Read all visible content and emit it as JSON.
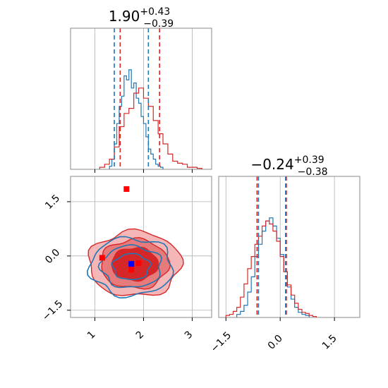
{
  "chart_data": [
    {
      "type": "histogram",
      "panel": "top-left",
      "title": {
        "value": "1.90",
        "plus": "+0.43",
        "minus": "−0.39"
      },
      "xlim": [
        0.5,
        3.4
      ],
      "grid": true,
      "series": [
        {
          "color": "#1f77b4",
          "bin_edges": [
            1.3,
            1.35,
            1.4,
            1.45,
            1.5,
            1.55,
            1.6,
            1.65,
            1.7,
            1.75,
            1.8,
            1.85,
            1.9,
            1.95,
            2.0,
            2.05,
            2.1,
            2.15,
            2.2,
            2.25,
            2.3,
            2.35,
            2.4
          ],
          "counts": [
            0.03,
            0.1,
            0.25,
            0.45,
            0.62,
            0.72,
            0.92,
            0.88,
            0.98,
            0.8,
            0.85,
            0.7,
            0.65,
            0.52,
            0.45,
            0.32,
            0.2,
            0.15,
            0.1,
            0.05,
            0.03,
            0.02
          ]
        },
        {
          "color": "#d62728",
          "bin_edges": [
            1.1,
            1.2,
            1.3,
            1.4,
            1.5,
            1.6,
            1.7,
            1.8,
            1.9,
            2.0,
            2.1,
            2.2,
            2.3,
            2.4,
            2.5,
            2.6,
            2.7,
            2.8,
            2.9,
            3.0,
            3.1,
            3.2
          ],
          "counts": [
            0.02,
            0.05,
            0.1,
            0.22,
            0.42,
            0.55,
            0.6,
            0.75,
            0.8,
            0.7,
            0.62,
            0.48,
            0.35,
            0.25,
            0.15,
            0.08,
            0.06,
            0.05,
            0.02,
            0.02,
            0.01
          ]
        }
      ],
      "quantile_lines": [
        {
          "color": "#1f77b4",
          "values": [
            1.4,
            2.1
          ]
        },
        {
          "color": "#d62728",
          "values": [
            1.52,
            2.33
          ]
        }
      ]
    },
    {
      "type": "contour",
      "panel": "bottom-left",
      "xlim": [
        0.5,
        3.4
      ],
      "ylim": [
        -1.7,
        2.2
      ],
      "xticks": [
        "1",
        "2",
        "3"
      ],
      "yticks": [
        "−1.5",
        "0.0",
        "1.5"
      ],
      "grid": true,
      "markers": [
        {
          "color": "#ff0000",
          "x": 1.65,
          "y": 1.85
        },
        {
          "color": "#ff0000",
          "x": 1.15,
          "y": -0.05
        },
        {
          "color": "#ff0000",
          "x": 1.9,
          "y": -0.2
        },
        {
          "color": "#ff0000",
          "x": 1.75,
          "y": -0.38
        },
        {
          "color": "#0000ff",
          "x": 1.75,
          "y": -0.22
        }
      ]
    },
    {
      "type": "histogram",
      "panel": "bottom-right",
      "title": {
        "value": "−0.24",
        "plus": "+0.39",
        "minus": "−0.38"
      },
      "xlim": [
        -1.7,
        2.2
      ],
      "xticks": [
        "−1.5",
        "0.0",
        "1.5"
      ],
      "grid": true,
      "series": [
        {
          "color": "#1f77b4",
          "bin_edges": [
            -1.2,
            -1.1,
            -1.0,
            -0.9,
            -0.8,
            -0.7,
            -0.6,
            -0.5,
            -0.4,
            -0.3,
            -0.2,
            -0.1,
            0.0,
            0.1,
            0.2,
            0.3,
            0.4,
            0.5,
            0.6,
            0.7,
            0.8
          ],
          "counts": [
            0.03,
            0.06,
            0.12,
            0.25,
            0.4,
            0.6,
            0.72,
            0.85,
            0.95,
            0.98,
            0.9,
            0.78,
            0.62,
            0.45,
            0.3,
            0.18,
            0.1,
            0.05,
            0.03,
            0.02
          ]
        },
        {
          "color": "#d62728",
          "bin_edges": [
            -1.5,
            -1.4,
            -1.3,
            -1.2,
            -1.1,
            -1.0,
            -0.9,
            -0.8,
            -0.7,
            -0.6,
            -0.5,
            -0.4,
            -0.3,
            -0.2,
            -0.1,
            0.0,
            0.1,
            0.2,
            0.3,
            0.4,
            0.5,
            0.6,
            0.7,
            0.8,
            0.9,
            1.0
          ],
          "counts": [
            0.02,
            0.03,
            0.06,
            0.1,
            0.2,
            0.33,
            0.48,
            0.6,
            0.72,
            0.8,
            0.9,
            0.95,
            0.92,
            0.85,
            0.75,
            0.6,
            0.45,
            0.32,
            0.22,
            0.14,
            0.08,
            0.05,
            0.04,
            0.02,
            0.01
          ]
        }
      ],
      "quantile_lines": [
        {
          "color": "#1f77b4",
          "values": [
            -0.6,
            0.15
          ]
        },
        {
          "color": "#d62728",
          "values": [
            -0.64,
            0.17
          ]
        }
      ]
    }
  ]
}
